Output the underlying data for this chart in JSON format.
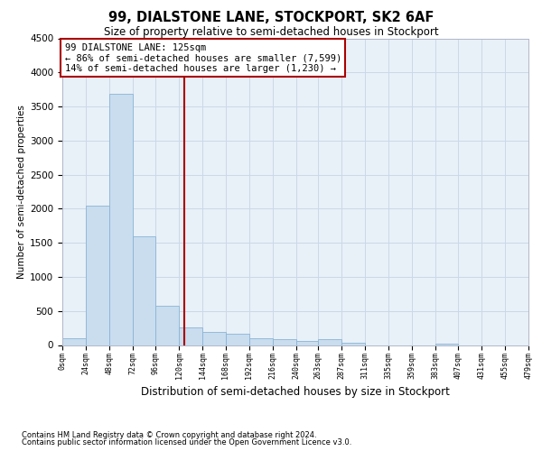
{
  "title": "99, DIALSTONE LANE, STOCKPORT, SK2 6AF",
  "subtitle": "Size of property relative to semi-detached houses in Stockport",
  "xlabel": "Distribution of semi-detached houses by size in Stockport",
  "ylabel": "Number of semi-detached properties",
  "footnote1": "Contains HM Land Registry data © Crown copyright and database right 2024.",
  "footnote2": "Contains public sector information licensed under the Open Government Licence v3.0.",
  "annotation_title": "99 DIALSTONE LANE: 125sqm",
  "annotation_line1": "← 86% of semi-detached houses are smaller (7,599)",
  "annotation_line2": "14% of semi-detached houses are larger (1,230) →",
  "property_size": 125,
  "bin_edges": [
    0,
    24,
    48,
    72,
    96,
    120,
    144,
    168,
    192,
    216,
    240,
    263,
    287,
    311,
    335,
    359,
    383,
    407,
    431,
    455,
    479
  ],
  "bar_heights": [
    95,
    2050,
    3680,
    1600,
    580,
    260,
    190,
    165,
    105,
    80,
    55,
    80,
    30,
    0,
    0,
    0,
    25,
    0,
    0,
    0
  ],
  "bar_color": "#c9ddef",
  "bar_edge_color": "#8ab4d4",
  "vline_color": "#aa0000",
  "grid_color": "#ccd8e8",
  "bg_color": "#e8f0f8",
  "ylim": [
    0,
    4500
  ],
  "yticks": [
    0,
    500,
    1000,
    1500,
    2000,
    2500,
    3000,
    3500,
    4000,
    4500
  ],
  "annotation_box_facecolor": "#ffffff",
  "annotation_box_edgecolor": "#aa0000"
}
